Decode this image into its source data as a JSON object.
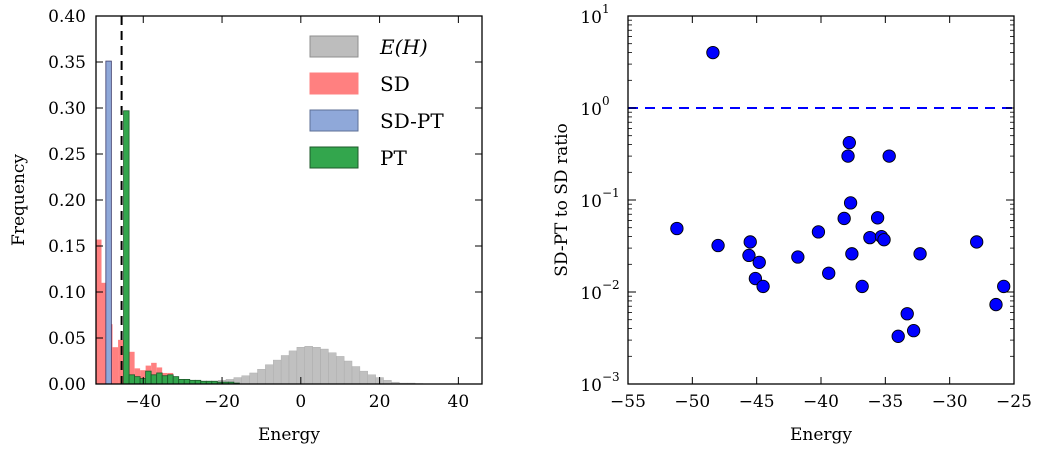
{
  "chart_data": [
    {
      "type": "bar",
      "title": "",
      "xlabel": "Energy",
      "ylabel": "Frequency",
      "xlim": [
        -52,
        46
      ],
      "ylim": [
        0,
        0.4
      ],
      "xticks": [
        -40,
        -20,
        0,
        20,
        40
      ],
      "xtick_labels": [
        "−40",
        "−20",
        "0",
        "20",
        "40"
      ],
      "yticks": [
        0,
        0.05,
        0.1,
        0.15,
        0.2,
        0.25,
        0.3,
        0.35,
        0.4
      ],
      "ytick_labels": [
        "0.00",
        "0.05",
        "0.10",
        "0.15",
        "0.20",
        "0.25",
        "0.30",
        "0.35",
        "0.40"
      ],
      "grid": false,
      "legend_position": "top-right",
      "legend_labels": [
        "E(H)",
        "SD",
        "SD-PT",
        "PT"
      ],
      "reference_line": {
        "x": -45.5,
        "style": "dashed",
        "color": "#000000"
      },
      "series": [
        {
          "name": "E(H)",
          "color": "#bdbdbd",
          "bin_width": 2,
          "x": [
            -40,
            -38,
            -36,
            -34,
            -32,
            -30,
            -28,
            -26,
            -24,
            -22,
            -20,
            -18,
            -16,
            -14,
            -12,
            -10,
            -8,
            -6,
            -4,
            -2,
            0,
            2,
            4,
            6,
            8,
            10,
            12,
            14,
            16,
            18,
            20,
            22,
            24,
            26,
            28,
            30
          ],
          "values": [
            0.001,
            0.001,
            0.001,
            0.002,
            0.002,
            0.002,
            0.002,
            0.002,
            0.003,
            0.003,
            0.004,
            0.005,
            0.007,
            0.009,
            0.012,
            0.016,
            0.021,
            0.026,
            0.031,
            0.036,
            0.04,
            0.041,
            0.04,
            0.038,
            0.034,
            0.03,
            0.025,
            0.019,
            0.014,
            0.01,
            0.007,
            0.004,
            0.002,
            0.001,
            0.001,
            0.0005
          ]
        },
        {
          "name": "SD",
          "color": "#ff8080",
          "bin_width": 1.4,
          "x": [
            -51.3,
            -49.9,
            -48.5,
            -47.1,
            -45.7,
            -44.3,
            -42.9,
            -41.5,
            -40.1,
            -38.7,
            -37.3,
            -35.9,
            -34.5,
            -33.1,
            -31.7,
            -30.3
          ],
          "values": [
            0.157,
            0.11,
            0.065,
            0.04,
            0.048,
            0.075,
            0.035,
            0.017,
            0.015,
            0.02,
            0.023,
            0.018,
            0.012,
            0.012,
            0.008,
            0.003
          ]
        },
        {
          "name": "SD-PT",
          "color": "#8fa8d9",
          "bin_width": 1.4,
          "x": [
            -48.8
          ],
          "values": [
            0.351
          ]
        },
        {
          "name": "PT",
          "color": "#33a64d",
          "bin_width": 1.4,
          "x": [
            -44.3,
            -42.9,
            -41.5,
            -40.1,
            -38.7,
            -37.3,
            -35.9,
            -34.5,
            -33.1,
            -31.7,
            -30.3,
            -28.9,
            -27.5,
            -26.1,
            -24.7,
            -23.3,
            -21.9,
            -20.5,
            -19.1,
            -17.7,
            -16.3
          ],
          "values": [
            0.297,
            0.01,
            0.008,
            0.006,
            0.014,
            0.01,
            0.012,
            0.009,
            0.01,
            0.008,
            0.005,
            0.005,
            0.004,
            0.004,
            0.003,
            0.003,
            0.003,
            0.002,
            0.002,
            0.002,
            0.001
          ]
        }
      ]
    },
    {
      "type": "scatter",
      "title": "",
      "xlabel": "Energy",
      "ylabel": "SD-PT to SD ratio",
      "xlim": [
        -55,
        -25
      ],
      "ylim": [
        0.001,
        10
      ],
      "yscale": "log",
      "xticks": [
        -55,
        -50,
        -45,
        -40,
        -35,
        -30,
        -25
      ],
      "xtick_labels": [
        "−55",
        "−50",
        "−45",
        "−40",
        "−35",
        "−30",
        "−25"
      ],
      "yticks": [
        0.001,
        0.01,
        0.1,
        1,
        10
      ],
      "ytick_labels": [
        {
          "base": "10",
          "exp": "−3"
        },
        {
          "base": "10",
          "exp": "−2"
        },
        {
          "base": "10",
          "exp": "−1"
        },
        {
          "base": "10",
          "exp": "0"
        },
        {
          "base": "10",
          "exp": "1"
        }
      ],
      "grid": false,
      "reference_line": {
        "y": 1,
        "style": "dashed",
        "color": "#0000ff"
      },
      "marker_color": "#0000ff",
      "points": [
        {
          "x": -51.2,
          "y": 0.049
        },
        {
          "x": -48.4,
          "y": 4.0
        },
        {
          "x": -48.0,
          "y": 0.032
        },
        {
          "x": -45.6,
          "y": 0.025
        },
        {
          "x": -45.5,
          "y": 0.035
        },
        {
          "x": -45.1,
          "y": 0.014
        },
        {
          "x": -44.8,
          "y": 0.021
        },
        {
          "x": -44.5,
          "y": 0.0115
        },
        {
          "x": -41.8,
          "y": 0.024
        },
        {
          "x": -40.2,
          "y": 0.045
        },
        {
          "x": -39.4,
          "y": 0.016
        },
        {
          "x": -38.2,
          "y": 0.063
        },
        {
          "x": -37.9,
          "y": 0.3
        },
        {
          "x": -37.8,
          "y": 0.42
        },
        {
          "x": -37.7,
          "y": 0.093
        },
        {
          "x": -37.6,
          "y": 0.026
        },
        {
          "x": -36.8,
          "y": 0.0115
        },
        {
          "x": -36.2,
          "y": 0.039
        },
        {
          "x": -35.6,
          "y": 0.064
        },
        {
          "x": -35.3,
          "y": 0.04
        },
        {
          "x": -35.1,
          "y": 0.037
        },
        {
          "x": -34.7,
          "y": 0.3
        },
        {
          "x": -34.0,
          "y": 0.0033
        },
        {
          "x": -33.3,
          "y": 0.0058
        },
        {
          "x": -32.8,
          "y": 0.0038
        },
        {
          "x": -32.3,
          "y": 0.026
        },
        {
          "x": -27.9,
          "y": 0.035
        },
        {
          "x": -26.4,
          "y": 0.0073
        },
        {
          "x": -25.8,
          "y": 0.0115
        }
      ]
    }
  ]
}
